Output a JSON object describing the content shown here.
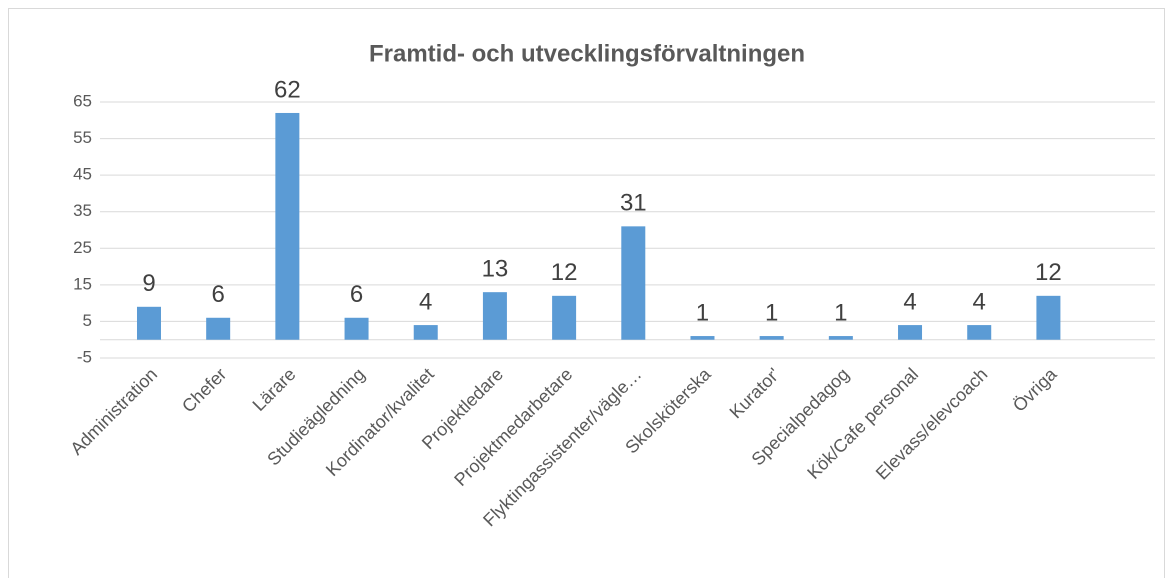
{
  "chart_data": {
    "type": "bar",
    "title": "Framtid- och utvecklingsförvaltningen",
    "categories": [
      "Administration",
      "Chefer",
      "Lärare",
      "Studieägledning",
      "Kordinator/kvalitet",
      "Projektledare",
      "Projektmedarbetare",
      "Flyktingassistenter/vägle…",
      "Skolsköterska",
      "Kurator'",
      "Specialpedagog",
      "Kök/Cafe personal",
      "Elevass/elevcoach",
      "Övriga"
    ],
    "values": [
      9,
      6,
      62,
      6,
      4,
      13,
      12,
      31,
      1,
      1,
      1,
      4,
      4,
      12
    ],
    "color": "#5b9bd5",
    "ylim": [
      -5,
      65
    ],
    "yticks": [
      -5,
      5,
      15,
      25,
      35,
      45,
      55,
      65
    ],
    "grid": true
  }
}
